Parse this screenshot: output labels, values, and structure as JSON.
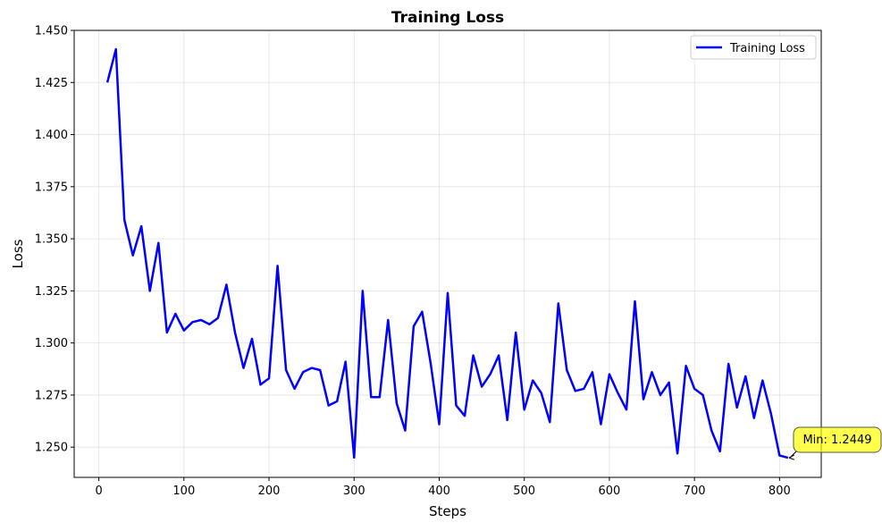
{
  "chart_data": {
    "type": "line",
    "title": "Training Loss",
    "xlabel": "Steps",
    "ylabel": "Loss",
    "xlim": [
      -29,
      849
    ],
    "ylim": [
      1.2355,
      1.45
    ],
    "xticks": [
      0,
      100,
      200,
      300,
      400,
      500,
      600,
      700,
      800
    ],
    "yticks": [
      1.25,
      1.275,
      1.3,
      1.325,
      1.35,
      1.375,
      1.4,
      1.425,
      1.45
    ],
    "ytick_labels": [
      "1.250",
      "1.275",
      "1.300",
      "1.325",
      "1.350",
      "1.375",
      "1.400",
      "1.425",
      "1.450"
    ],
    "grid": true,
    "legend_position": "upper right",
    "series": [
      {
        "name": "Training Loss",
        "color": "#0000ff",
        "x": [
          10,
          20,
          30,
          40,
          50,
          60,
          70,
          80,
          90,
          100,
          110,
          120,
          130,
          140,
          150,
          160,
          170,
          180,
          190,
          200,
          210,
          220,
          230,
          240,
          250,
          260,
          270,
          280,
          290,
          300,
          310,
          320,
          330,
          340,
          350,
          360,
          370,
          380,
          390,
          400,
          410,
          420,
          430,
          440,
          450,
          460,
          470,
          480,
          490,
          500,
          510,
          520,
          530,
          540,
          550,
          560,
          570,
          580,
          590,
          600,
          610,
          620,
          630,
          640,
          650,
          660,
          670,
          680,
          690,
          700,
          710,
          720,
          730,
          740,
          750,
          760,
          770,
          780,
          790,
          800,
          810
        ],
        "values": [
          1.425,
          1.441,
          1.359,
          1.342,
          1.356,
          1.325,
          1.348,
          1.305,
          1.314,
          1.306,
          1.31,
          1.311,
          1.309,
          1.312,
          1.328,
          1.305,
          1.288,
          1.302,
          1.28,
          1.283,
          1.337,
          1.287,
          1.278,
          1.286,
          1.288,
          1.287,
          1.27,
          1.272,
          1.291,
          1.245,
          1.325,
          1.274,
          1.274,
          1.311,
          1.271,
          1.258,
          1.308,
          1.315,
          1.29,
          1.261,
          1.324,
          1.27,
          1.265,
          1.294,
          1.279,
          1.285,
          1.294,
          1.263,
          1.305,
          1.268,
          1.282,
          1.276,
          1.262,
          1.319,
          1.287,
          1.277,
          1.278,
          1.286,
          1.261,
          1.285,
          1.276,
          1.268,
          1.32,
          1.273,
          1.286,
          1.275,
          1.281,
          1.247,
          1.289,
          1.278,
          1.275,
          1.258,
          1.248,
          1.29,
          1.269,
          1.284,
          1.264,
          1.282,
          1.266,
          1.246,
          1.2449
        ]
      }
    ],
    "annotations": [
      {
        "text": "Min: 1.2449",
        "point": [
          810,
          1.2449
        ],
        "box_color": "#ffff00"
      }
    ]
  }
}
